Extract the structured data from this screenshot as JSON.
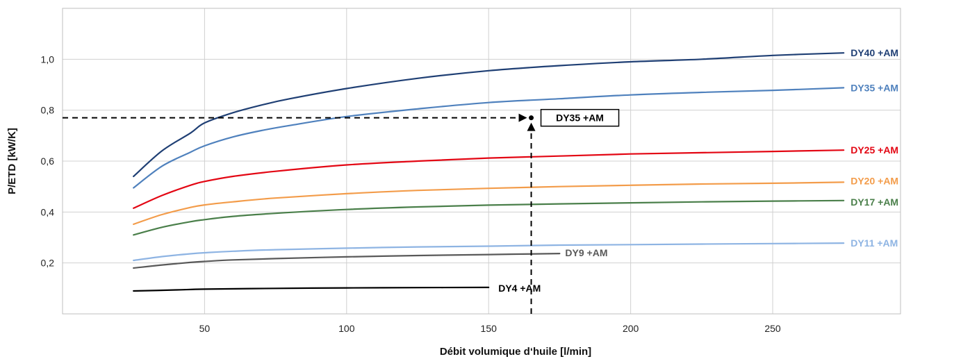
{
  "chart_data": {
    "type": "line",
    "title": "",
    "xlabel": "Débit volumique d‘huile [l/min]",
    "ylabel": "P/ETD [kW/K]",
    "xlim": [
      0,
      295
    ],
    "ylim": [
      0,
      1.2
    ],
    "xticks": [
      50,
      100,
      150,
      200,
      250
    ],
    "xtick_labels": [
      "50",
      "100",
      "150",
      "200",
      "250"
    ],
    "yticks": [
      0.2,
      0.4,
      0.6,
      0.8,
      1.0
    ],
    "ytick_labels": [
      "0,2",
      "0,4",
      "0,6",
      "0,8",
      "1,0"
    ],
    "grid": true,
    "series": [
      {
        "name": "DY40 +AM",
        "color": "#1f3f74",
        "x": [
          25,
          35,
          45,
          50,
          60,
          70,
          80,
          100,
          125,
          150,
          175,
          200,
          225,
          250,
          275
        ],
        "y": [
          0.54,
          0.64,
          0.71,
          0.75,
          0.79,
          0.82,
          0.845,
          0.885,
          0.925,
          0.955,
          0.975,
          0.99,
          1.0,
          1.015,
          1.025
        ]
      },
      {
        "name": "DY35 +AM",
        "color": "#4f81bd",
        "x": [
          25,
          35,
          45,
          50,
          60,
          70,
          80,
          100,
          125,
          150,
          175,
          200,
          225,
          250,
          275
        ],
        "y": [
          0.495,
          0.58,
          0.635,
          0.66,
          0.695,
          0.72,
          0.74,
          0.775,
          0.805,
          0.83,
          0.845,
          0.86,
          0.87,
          0.878,
          0.888
        ]
      },
      {
        "name": "DY25 +AM",
        "color": "#e30613",
        "x": [
          25,
          35,
          45,
          50,
          60,
          75,
          100,
          125,
          150,
          175,
          200,
          225,
          250,
          275
        ],
        "y": [
          0.415,
          0.465,
          0.505,
          0.52,
          0.54,
          0.56,
          0.585,
          0.6,
          0.612,
          0.62,
          0.628,
          0.633,
          0.638,
          0.643
        ]
      },
      {
        "name": "DY20 +AM",
        "color": "#f39c4a",
        "x": [
          25,
          35,
          45,
          50,
          60,
          75,
          100,
          125,
          150,
          175,
          200,
          225,
          250,
          275
        ],
        "y": [
          0.352,
          0.39,
          0.418,
          0.428,
          0.44,
          0.455,
          0.472,
          0.485,
          0.493,
          0.5,
          0.505,
          0.51,
          0.513,
          0.517
        ]
      },
      {
        "name": "DY17 +AM",
        "color": "#4a7f4a",
        "x": [
          25,
          35,
          45,
          50,
          60,
          75,
          100,
          125,
          150,
          175,
          200,
          225,
          250,
          275
        ],
        "y": [
          0.31,
          0.34,
          0.362,
          0.37,
          0.383,
          0.395,
          0.41,
          0.42,
          0.427,
          0.432,
          0.436,
          0.44,
          0.443,
          0.445
        ]
      },
      {
        "name": "DY11 +AM",
        "color": "#8eb4e3",
        "x": [
          25,
          35,
          45,
          50,
          60,
          75,
          100,
          125,
          150,
          175,
          200,
          225,
          250,
          275
        ],
        "y": [
          0.21,
          0.225,
          0.236,
          0.24,
          0.246,
          0.252,
          0.258,
          0.263,
          0.266,
          0.27,
          0.272,
          0.274,
          0.276,
          0.278
        ]
      },
      {
        "name": "DY9 +AM",
        "color": "#595959",
        "x": [
          25,
          35,
          45,
          50,
          60,
          75,
          100,
          125,
          150,
          175
        ],
        "y": [
          0.18,
          0.192,
          0.202,
          0.206,
          0.212,
          0.217,
          0.224,
          0.229,
          0.233,
          0.237
        ]
      },
      {
        "name": "DY4 +AM",
        "color": "#000000",
        "x": [
          25,
          40,
          50,
          75,
          100,
          125,
          150
        ],
        "y": [
          0.09,
          0.094,
          0.097,
          0.1,
          0.102,
          0.103,
          0.104
        ]
      }
    ],
    "annotation": {
      "label": "DY35 +AM",
      "point": {
        "x": 165,
        "y": 0.77
      }
    }
  }
}
